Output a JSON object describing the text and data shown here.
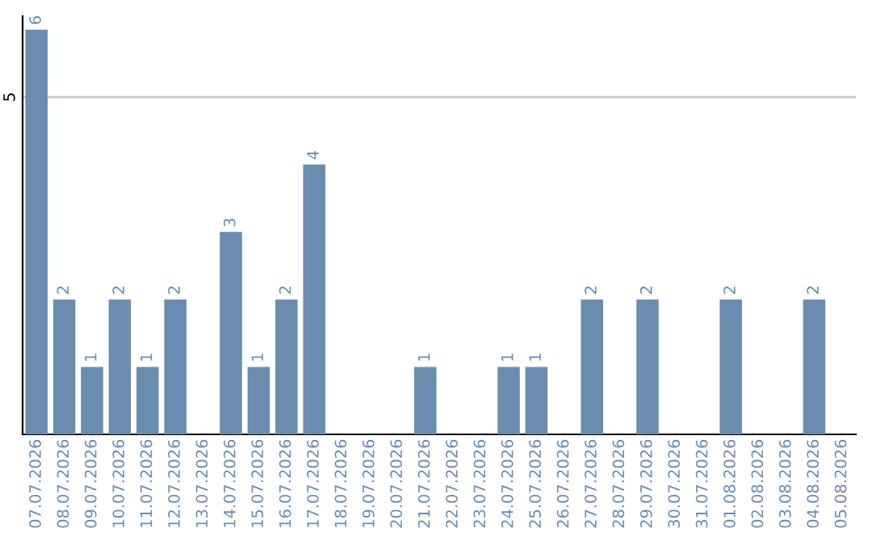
{
  "chart_data": {
    "type": "bar",
    "categories": [
      "07.07.2026",
      "08.07.2026",
      "09.07.2026",
      "10.07.2026",
      "11.07.2026",
      "12.07.2026",
      "13.07.2026",
      "14.07.2026",
      "15.07.2026",
      "16.07.2026",
      "17.07.2026",
      "18.07.2026",
      "19.07.2026",
      "20.07.2026",
      "21.07.2026",
      "22.07.2026",
      "23.07.2026",
      "24.07.2026",
      "25.07.2026",
      "26.07.2026",
      "27.07.2026",
      "28.07.2026",
      "29.07.2026",
      "30.07.2026",
      "31.07.2026",
      "01.08.2026",
      "02.08.2026",
      "03.08.2026",
      "04.08.2026",
      "05.08.2026"
    ],
    "values": [
      6,
      2,
      1,
      2,
      1,
      2,
      0,
      3,
      1,
      2,
      4,
      0,
      0,
      0,
      1,
      0,
      0,
      1,
      1,
      0,
      2,
      0,
      2,
      0,
      0,
      2,
      0,
      0,
      2,
      0
    ],
    "value_labels": [
      "6",
      "2",
      "1",
      "2",
      "1",
      "2",
      null,
      "3",
      "1",
      "2",
      "4",
      null,
      null,
      null,
      "1",
      null,
      null,
      "1",
      "1",
      null,
      "2",
      null,
      "2",
      null,
      null,
      "2",
      null,
      null,
      "2",
      null
    ],
    "color": "#6a8caf",
    "ylim": [
      0,
      6.2
    ],
    "yticks": [
      5
    ],
    "grid": "y",
    "legend": false
  }
}
